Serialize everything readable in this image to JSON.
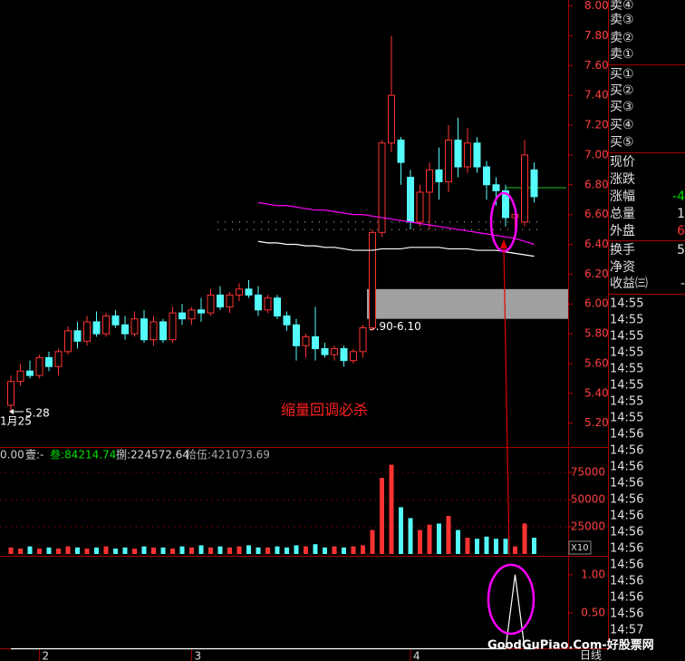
{
  "chart_data": [
    {
      "type": "candlestick",
      "start_date": "1月25",
      "categories": [
        null,
        null,
        null,
        "2",
        null,
        null,
        null,
        null,
        null,
        null,
        null,
        null,
        null,
        null,
        null,
        null,
        null,
        null,
        null,
        "3",
        null,
        null,
        null,
        null,
        null,
        null,
        null,
        null,
        null,
        null,
        null,
        null,
        null,
        null,
        null,
        null,
        null,
        null,
        null,
        null,
        null,
        null,
        "4",
        null,
        null,
        null,
        null,
        null,
        null,
        null,
        null,
        null,
        null,
        null,
        null,
        null
      ],
      "open": [
        5.32,
        5.48,
        5.55,
        5.52,
        5.64,
        5.58,
        5.68,
        5.82,
        5.75,
        5.88,
        5.8,
        5.92,
        5.86,
        5.8,
        5.9,
        5.76,
        5.88,
        5.76,
        5.94,
        5.9,
        5.96,
        5.94,
        6.06,
        5.98,
        6.06,
        6.1,
        6.06,
        5.96,
        6.04,
        5.92,
        5.86,
        5.72,
        5.78,
        5.7,
        5.66,
        5.7,
        5.62,
        5.68,
        5.84,
        6.48,
        7.08,
        7.1,
        6.85,
        6.55,
        6.75,
        6.9,
        6.82,
        7.1,
        6.92,
        7.08,
        6.92,
        6.8,
        6.76,
        6.58,
        6.55,
        6.9
      ],
      "high": [
        5.52,
        5.6,
        5.62,
        5.66,
        5.68,
        5.7,
        5.85,
        5.88,
        5.92,
        5.95,
        5.94,
        5.96,
        5.92,
        5.95,
        5.96,
        5.92,
        5.9,
        5.98,
        6.0,
        5.98,
        6.04,
        6.1,
        6.12,
        6.08,
        6.14,
        6.16,
        6.12,
        6.06,
        6.06,
        5.95,
        5.9,
        5.8,
        5.98,
        5.74,
        5.72,
        5.72,
        5.7,
        5.86,
        6.5,
        7.1,
        7.8,
        7.12,
        6.9,
        6.8,
        6.95,
        7.05,
        7.2,
        7.25,
        7.18,
        7.12,
        6.96,
        6.85,
        6.8,
        6.66,
        7.1,
        6.95
      ],
      "low": [
        5.28,
        5.45,
        5.5,
        5.5,
        5.55,
        5.52,
        5.66,
        5.7,
        5.72,
        5.78,
        5.78,
        5.84,
        5.76,
        5.78,
        5.74,
        5.72,
        5.74,
        5.74,
        5.86,
        5.86,
        5.88,
        5.92,
        5.96,
        5.94,
        6.02,
        6.04,
        5.92,
        5.94,
        5.9,
        5.82,
        5.62,
        5.64,
        5.62,
        5.64,
        5.62,
        5.58,
        5.6,
        5.64,
        5.82,
        6.45,
        7.02,
        6.8,
        6.5,
        6.52,
        6.5,
        6.7,
        6.75,
        6.85,
        6.88,
        6.88,
        6.7,
        6.66,
        6.52,
        6.46,
        6.52,
        6.68
      ],
      "close": [
        5.48,
        5.55,
        5.52,
        5.64,
        5.58,
        5.68,
        5.82,
        5.75,
        5.88,
        5.8,
        5.92,
        5.86,
        5.8,
        5.9,
        5.76,
        5.88,
        5.76,
        5.94,
        5.9,
        5.96,
        5.94,
        6.06,
        5.98,
        6.06,
        6.1,
        6.06,
        5.96,
        6.04,
        5.92,
        5.86,
        5.72,
        5.78,
        5.7,
        5.66,
        5.7,
        5.62,
        5.68,
        5.84,
        6.48,
        7.08,
        7.4,
        6.95,
        6.55,
        6.75,
        6.9,
        6.82,
        7.1,
        6.92,
        7.08,
        6.92,
        6.8,
        6.76,
        6.58,
        6.6,
        7.0,
        6.72
      ],
      "up_color": "#ff3232",
      "down_color": "#54fcfc",
      "series": [
        {
          "color": "#ff00ff",
          "values": [
            null,
            null,
            null,
            null,
            null,
            null,
            null,
            null,
            null,
            null,
            null,
            null,
            null,
            null,
            null,
            null,
            null,
            null,
            null,
            null,
            null,
            null,
            null,
            null,
            null,
            null,
            6.68,
            6.67,
            6.66,
            6.66,
            6.65,
            6.64,
            6.63,
            6.63,
            6.62,
            6.61,
            6.6,
            6.6,
            6.59,
            6.58,
            6.57,
            6.56,
            6.55,
            6.54,
            6.53,
            6.52,
            6.51,
            6.5,
            6.49,
            6.48,
            6.47,
            6.46,
            6.45,
            6.44,
            6.42,
            6.4
          ]
        },
        {
          "color": "#ffffff",
          "values": [
            null,
            null,
            null,
            null,
            null,
            null,
            null,
            null,
            null,
            null,
            null,
            null,
            null,
            null,
            null,
            null,
            null,
            null,
            null,
            null,
            null,
            null,
            null,
            null,
            null,
            null,
            6.42,
            6.41,
            6.41,
            6.4,
            6.4,
            6.39,
            6.39,
            6.38,
            6.38,
            6.37,
            6.36,
            6.36,
            6.36,
            6.37,
            6.37,
            6.37,
            6.38,
            6.38,
            6.38,
            6.38,
            6.37,
            6.37,
            6.37,
            6.36,
            6.36,
            6.36,
            6.35,
            6.34,
            6.33,
            6.32
          ]
        }
      ],
      "ylim": [
        5.04,
        8.04
      ],
      "yticks": [
        {
          "value": 5.2,
          "label": "5.20"
        },
        {
          "value": 5.4,
          "label": "5.40"
        },
        {
          "value": 5.6,
          "label": "5.60"
        },
        {
          "value": 5.8,
          "label": "5.80"
        },
        {
          "value": 6.0,
          "label": "6.00"
        },
        {
          "value": 6.2,
          "label": "6.20"
        },
        {
          "value": 6.4,
          "label": "6.40"
        },
        {
          "value": 6.6,
          "label": "6.60"
        },
        {
          "value": 6.8,
          "label": "6.80"
        },
        {
          "value": 7.0,
          "label": "7.00"
        },
        {
          "value": 7.2,
          "label": "7.20"
        },
        {
          "value": 7.4,
          "label": "7.40"
        },
        {
          "value": 7.6,
          "label": "7.60"
        },
        {
          "value": 7.8,
          "label": "7.80"
        },
        {
          "value": 8.0,
          "label": "8.00"
        }
      ],
      "band": {
        "low": 5.9,
        "high": 6.1,
        "label": "5.90-6.10",
        "color": "#a0a0a0"
      },
      "ref_line": 6.78,
      "dotted_lines": [
        6.55,
        6.5
      ],
      "low_label": {
        "value": 5.28,
        "label": "5.28"
      },
      "annotation": "缩量回调必杀"
    },
    {
      "type": "bar",
      "header": [
        "0.00",
        "壹:-",
        "叁:84214.74",
        "捌:224572.64",
        "拾伍:421073.69"
      ],
      "values": [
        6000,
        5000,
        7000,
        5000,
        6000,
        5000,
        7000,
        6000,
        5000,
        6000,
        7000,
        5000,
        6000,
        5000,
        7000,
        6000,
        6000,
        5000,
        7000,
        6000,
        8000,
        6000,
        7000,
        6000,
        7000,
        8000,
        6000,
        6000,
        7000,
        6000,
        8000,
        7000,
        9000,
        6000,
        7000,
        6000,
        7000,
        8000,
        22000,
        70000,
        82000,
        43000,
        33000,
        22000,
        27000,
        28000,
        35000,
        22000,
        15000,
        14000,
        16000,
        14000,
        14000,
        7000,
        28000,
        15000
      ],
      "ylim": [
        0,
        97500
      ],
      "yticks": [
        25000,
        50000,
        75000
      ],
      "unit_label": "X10"
    },
    {
      "type": "line",
      "values": [
        0.03,
        0.03,
        0.03,
        0.03,
        0.03,
        0.03,
        0.03,
        0.03,
        0.03,
        0.03,
        0.03,
        0.03,
        0.03,
        0.03,
        0.03,
        0.03,
        0.03,
        0.03,
        0.03,
        0.03,
        0.03,
        0.03,
        0.03,
        0.03,
        0.03,
        0.03,
        0.03,
        0.03,
        0.03,
        0.03,
        0.03,
        0.03,
        0.03,
        0.03,
        0.03,
        0.03,
        0.03,
        0.03,
        0.03,
        0.03,
        0.03,
        0.03,
        0.03,
        0.03,
        0.03,
        0.03,
        0.03,
        0.03,
        0.03,
        0.03,
        0.03,
        0.03,
        0.03,
        1.0,
        0.03,
        0.03
      ],
      "color": "#ffffff",
      "ylim": [
        0,
        1.2
      ],
      "yticks": [
        {
          "value": 0.5,
          "label": "0.50"
        },
        {
          "value": 1.0,
          "label": "1.00"
        }
      ]
    }
  ],
  "quote_panel": {
    "rows": [
      {
        "label": "卖④"
      },
      {
        "label": "卖③"
      },
      {
        "label": "卖②"
      },
      {
        "label": "卖①"
      },
      {
        "label": "买①"
      },
      {
        "label": "买②"
      },
      {
        "label": "买③"
      },
      {
        "label": "买④"
      },
      {
        "label": "买⑤"
      },
      {
        "label": "现价"
      },
      {
        "label": "涨跌"
      },
      {
        "label": "涨幅",
        "value": "-4"
      },
      {
        "label": "总量",
        "value": "1"
      },
      {
        "label": "外盘",
        "value": "6"
      },
      {
        "label": "换手",
        "value": "5"
      },
      {
        "label": "净资"
      },
      {
        "label": "收益㈢",
        "value": "-"
      }
    ],
    "times": [
      "14:55",
      "14:55",
      "14:55",
      "14:55",
      "14:55",
      "14:55",
      "14:55",
      "14:55",
      "14:56",
      "14:56",
      "14:56",
      "14:56",
      "14:56",
      "14:56",
      "14:56",
      "14:56",
      "14:56",
      "14:56",
      "14:56",
      "14:56",
      "14:57"
    ]
  },
  "period": "日线",
  "watermark": "GoodGuPiao.Com-好股票网"
}
